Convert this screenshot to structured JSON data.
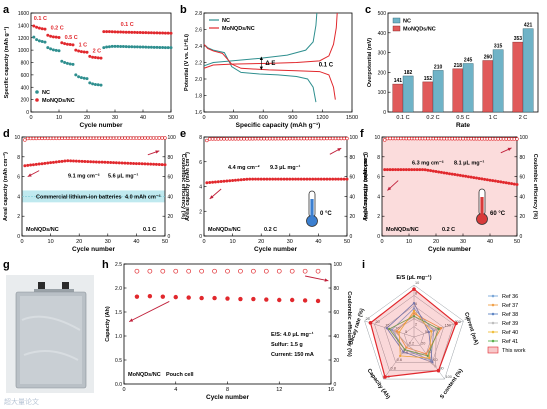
{
  "colors": {
    "nc": "#2f8f8f",
    "mo": "#e1282d",
    "nc_bar": "#6fb3c7",
    "mo_bar": "#e05a5a",
    "pink_fill": "#fbdcdc",
    "cyan_fill": "#bfe9ef",
    "arrow": "#c0203a"
  },
  "chart_data": [
    {
      "id": "a",
      "type": "scatter",
      "panel_label": "a",
      "xlabel": "Cycle number",
      "ylabel": "Specific capacity (mAh g⁻¹)",
      "xlim": [
        0,
        50
      ],
      "ylim": [
        0,
        1600
      ],
      "xticks": [
        "0",
        "10",
        "20",
        "30",
        "40",
        "50"
      ],
      "yticks": [
        "0",
        "200",
        "400",
        "600",
        "800",
        "1000",
        "1200",
        "1400",
        "1600"
      ],
      "legend": "bottom-left",
      "rate_labels": [
        "0.1 C",
        "0.2 C",
        "0.5 C",
        "1 C",
        "2 C",
        "0.1 C"
      ],
      "series": [
        {
          "name": "NC",
          "color_key": "nc",
          "segments": [
            {
              "x0": 1,
              "x1": 5,
              "y": [
                1210,
                1170,
                1150,
                1140,
                1130
              ]
            },
            {
              "x0": 6,
              "x1": 10,
              "y": [
                1040,
                1020,
                1005,
                995,
                990
              ]
            },
            {
              "x0": 11,
              "x1": 15,
              "y": [
                820,
                800,
                785,
                775,
                770
              ]
            },
            {
              "x0": 16,
              "x1": 20,
              "y": [
                600,
                570,
                555,
                545,
                540
              ]
            },
            {
              "x0": 21,
              "x1": 25,
              "y": [
                470,
                455,
                445,
                440,
                435
              ]
            },
            {
              "x0": 26,
              "x1": 50,
              "y": [
                1040,
                1050,
                1055,
                1060,
                1060,
                1060,
                1058,
                1058,
                1057,
                1055,
                1055,
                1053,
                1052,
                1050,
                1050,
                1048,
                1047,
                1046,
                1045,
                1044,
                1043,
                1042,
                1041,
                1040,
                1040
              ]
            }
          ]
        },
        {
          "name": "MoNQDs/NC",
          "color_key": "mo",
          "segments": [
            {
              "x0": 1,
              "x1": 5,
              "y": [
                1390,
                1370,
                1355,
                1345,
                1340
              ]
            },
            {
              "x0": 6,
              "x1": 10,
              "y": [
                1240,
                1225,
                1215,
                1210,
                1205
              ]
            },
            {
              "x0": 11,
              "x1": 15,
              "y": [
                1120,
                1105,
                1095,
                1090,
                1085
              ]
            },
            {
              "x0": 16,
              "x1": 20,
              "y": [
                1000,
                985,
                975,
                970,
                965
              ]
            },
            {
              "x0": 21,
              "x1": 25,
              "y": [
                900,
                885,
                880,
                875,
                870
              ]
            },
            {
              "x0": 26,
              "x1": 50,
              "y": [
                1300,
                1300,
                1298,
                1296,
                1295,
                1293,
                1292,
                1290,
                1289,
                1288,
                1287,
                1286,
                1285,
                1284,
                1283,
                1282,
                1281,
                1280,
                1279,
                1278,
                1277,
                1276,
                1275,
                1274,
                1273
              ]
            }
          ]
        }
      ]
    },
    {
      "id": "b",
      "type": "line",
      "panel_label": "b",
      "xlabel": "Specific capacity (mAh g⁻¹)",
      "ylabel": "Potential (V vs. Li⁺/Li)",
      "xlim": [
        0,
        1600
      ],
      "ylim": [
        1.6,
        2.8
      ],
      "xticks": [
        "0",
        "300",
        "600",
        "900",
        "1200",
        "1500"
      ],
      "yticks": [
        "1.6",
        "1.8",
        "2.0",
        "2.2",
        "2.4",
        "2.6",
        "2.8"
      ],
      "legend": "top-left",
      "annotations": [
        "Δ E",
        "0.1 C"
      ],
      "series": [
        {
          "name": "NC",
          "color_key": "nc",
          "discharge": [
            [
              0,
              2.42
            ],
            [
              40,
              2.38
            ],
            [
              100,
              2.35
            ],
            [
              220,
              2.32
            ],
            [
              300,
              2.15
            ],
            [
              400,
              2.08
            ],
            [
              600,
              2.06
            ],
            [
              800,
              2.05
            ],
            [
              1000,
              2.03
            ],
            [
              1120,
              2.0
            ],
            [
              1180,
              1.9
            ],
            [
              1210,
              1.72
            ]
          ],
          "charge": [
            [
              0,
              2.16
            ],
            [
              100,
              2.2
            ],
            [
              300,
              2.22
            ],
            [
              600,
              2.25
            ],
            [
              900,
              2.29
            ],
            [
              1100,
              2.35
            ],
            [
              1180,
              2.45
            ],
            [
              1210,
              2.65
            ],
            [
              1220,
              2.8
            ]
          ]
        },
        {
          "name": "MoNQDs/NC",
          "color_key": "mo",
          "discharge": [
            [
              0,
              2.42
            ],
            [
              40,
              2.37
            ],
            [
              100,
              2.34
            ],
            [
              200,
              2.31
            ],
            [
              300,
              2.18
            ],
            [
              400,
              2.13
            ],
            [
              700,
              2.11
            ],
            [
              1000,
              2.1
            ],
            [
              1250,
              2.09
            ],
            [
              1350,
              2.05
            ],
            [
              1400,
              1.9
            ],
            [
              1420,
              1.75
            ]
          ],
          "charge": [
            [
              0,
              2.13
            ],
            [
              100,
              2.17
            ],
            [
              300,
              2.18
            ],
            [
              700,
              2.19
            ],
            [
              1000,
              2.2
            ],
            [
              1250,
              2.22
            ],
            [
              1350,
              2.28
            ],
            [
              1400,
              2.42
            ],
            [
              1430,
              2.62
            ],
            [
              1440,
              2.8
            ]
          ]
        }
      ]
    },
    {
      "id": "c",
      "type": "bar",
      "panel_label": "c",
      "xlabel": "Rate",
      "ylabel": "Overpotential (mV)",
      "ylim": [
        0,
        500
      ],
      "yticks": [
        "0",
        "100",
        "200",
        "300",
        "400",
        "500"
      ],
      "categories": [
        "0.1 C",
        "0.2 C",
        "0.5 C",
        "1 C",
        "2 C"
      ],
      "legend": "top-left",
      "series": [
        {
          "name": "NC",
          "color_key": "nc_bar",
          "values": [
            182,
            210,
            245,
            315,
            421
          ]
        },
        {
          "name": "MoNQDs/NC",
          "color_key": "mo_bar",
          "values": [
            141,
            152,
            218,
            260,
            353
          ]
        }
      ]
    },
    {
      "id": "d",
      "type": "scatter",
      "panel_label": "d",
      "xlabel": "Cycle number",
      "ylabel": "Areal capacity (mAh cm⁻²)",
      "y2label": "Coulombic efficiency (%)",
      "xlim": [
        0,
        50
      ],
      "ylim": [
        0,
        10
      ],
      "y2lim": [
        0,
        100
      ],
      "xticks": [
        "0",
        "10",
        "20",
        "30",
        "40",
        "50"
      ],
      "yticks": [
        "0",
        "2",
        "4",
        "6",
        "8",
        "10"
      ],
      "y2ticks": [
        "0",
        "20",
        "40",
        "60",
        "80",
        "100"
      ],
      "texts": [
        "9.1 mg cm⁻²",
        "5.6 μL mg⁻¹",
        "Commercial lithium-ion batteries",
        "4.0 mAh cm⁻²",
        "MoNQDs/NC",
        "0.1 C"
      ],
      "band_value": 4.0,
      "ce": {
        "start": 98.5,
        "end": 99.0
      },
      "capacity": {
        "start": 7.1,
        "peak": 7.6,
        "end": 7.2
      }
    },
    {
      "id": "e",
      "type": "scatter",
      "panel_label": "e",
      "xlabel": "Cycle number",
      "ylabel": "Areal capacity (mAh cm⁻²)",
      "y2label": "Coulombic efficiency (%)",
      "xlim": [
        0,
        50
      ],
      "ylim": [
        0,
        8
      ],
      "y2lim": [
        0,
        100
      ],
      "xticks": [
        "0",
        "10",
        "20",
        "30",
        "40",
        "50"
      ],
      "yticks": [
        "0",
        "2",
        "4",
        "6",
        "8"
      ],
      "y2ticks": [
        "0",
        "20",
        "40",
        "60",
        "80",
        "100"
      ],
      "texts": [
        "4.4 mg cm⁻²",
        "9.3 μL mg⁻¹",
        "0 °C",
        "MoNQDs/NC",
        "0.2 C"
      ],
      "ce": {
        "start": 98.0,
        "end": 98.5
      },
      "capacity": {
        "start": 4.3,
        "peak": 4.6,
        "end": 4.6
      }
    },
    {
      "id": "f",
      "type": "scatter",
      "panel_label": "f",
      "xlabel": "Cycle number",
      "ylabel": "Areal capacity (mAh cm⁻²)",
      "y2label": "Coulombic efficiency (%)",
      "xlim": [
        0,
        50
      ],
      "ylim": [
        0,
        10
      ],
      "y2lim": [
        0,
        100
      ],
      "xticks": [
        "0",
        "10",
        "20",
        "30",
        "40",
        "50"
      ],
      "yticks": [
        "0",
        "2",
        "4",
        "6",
        "8",
        "10"
      ],
      "y2ticks": [
        "0",
        "20",
        "40",
        "60",
        "80",
        "100"
      ],
      "texts": [
        "6.3 mg cm⁻²",
        "8.1 μL mg⁻¹",
        "60 °C",
        "MoNQDs/NC",
        "0.2 C"
      ],
      "ce": {
        "start": 98.5,
        "end": 98.0
      },
      "capacity": {
        "start": 6.7,
        "peak": 6.7,
        "end": 5.2
      }
    },
    {
      "id": "h",
      "type": "scatter",
      "panel_label": "h",
      "xlabel": "Cycle number",
      "ylabel": "Capacity (Ah)",
      "y2label": "Coulombic efficiency (%)",
      "xlim": [
        0,
        16
      ],
      "ylim": [
        0,
        2.5
      ],
      "y2lim": [
        0,
        100
      ],
      "xticks": [
        "0",
        "4",
        "8",
        "12",
        "16"
      ],
      "yticks": [
        "0.0",
        "0.5",
        "1.0",
        "1.5",
        "2.0",
        "2.5"
      ],
      "y2ticks": [
        "0",
        "20",
        "40",
        "60",
        "80",
        "100"
      ],
      "texts": [
        "E/S: 4.0 μL mg⁻¹",
        "Sulfur: 1.5 g",
        "Current: 150 mA",
        "MoNQDs/NC",
        "Pouch cell"
      ],
      "capacity": [
        1.82,
        1.83,
        1.82,
        1.81,
        1.8,
        1.79,
        1.79,
        1.78,
        1.77,
        1.77,
        1.76,
        1.75,
        1.75,
        1.74,
        1.73
      ],
      "ce": [
        94,
        94,
        94,
        94,
        94,
        94,
        94,
        94,
        94,
        94,
        94,
        94,
        94,
        94,
        94
      ]
    },
    {
      "id": "i",
      "type": "radar",
      "panel_label": "i",
      "axes": [
        "E/S (μL mg⁻¹)",
        "Current (mA)",
        "S content (%)",
        "Capacity (Ah)",
        "Decay rate (%)"
      ],
      "axis_ticks": [
        [
          "2",
          "4",
          "6",
          "8",
          "10"
        ],
        [
          "50",
          "100",
          "150",
          "200",
          "250"
        ],
        [
          "20",
          "40",
          "60",
          "80",
          "100"
        ],
        [
          "0.2",
          "0.4",
          "0.6",
          "0.8",
          "1.0"
        ],
        [
          "5",
          "10",
          "15",
          "20",
          "25"
        ]
      ],
      "legend": "right",
      "series": [
        {
          "name": "Ref 36",
          "color": "#7aa7d8",
          "values": [
            0.55,
            0.4,
            0.55,
            0.3,
            0.45
          ]
        },
        {
          "name": "Ref 37",
          "color": "#f1a24b",
          "values": [
            0.45,
            0.55,
            0.4,
            0.25,
            0.35
          ]
        },
        {
          "name": "Ref 38",
          "color": "#5f86c4",
          "values": [
            0.65,
            0.3,
            0.6,
            0.35,
            0.55
          ]
        },
        {
          "name": "Ref 39",
          "color": "#bdbdbd",
          "values": [
            0.35,
            0.45,
            0.7,
            0.2,
            0.4
          ]
        },
        {
          "name": "Ref 40",
          "color": "#f0c040",
          "values": [
            0.5,
            0.35,
            0.5,
            0.45,
            0.3
          ]
        },
        {
          "name": "Ref 41",
          "color": "#5bb04d",
          "values": [
            0.4,
            0.5,
            0.45,
            0.3,
            0.5
          ]
        },
        {
          "name": "This work",
          "color": "#e1282d",
          "fill": true,
          "values": [
            0.92,
            0.85,
            0.8,
            0.95,
            0.88
          ]
        }
      ]
    }
  ],
  "panel_g": {
    "label": "g",
    "watermark": "超大量论文"
  }
}
